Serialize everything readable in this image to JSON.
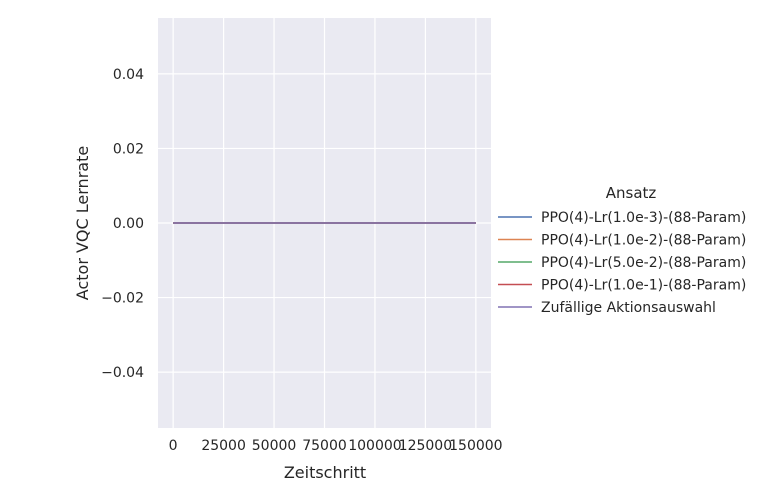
{
  "chart_data": {
    "type": "line",
    "xlabel": "Zeitschritt",
    "ylabel": "Actor VQC Lernrate",
    "xlim": [
      -7500,
      157500
    ],
    "ylim": [
      -0.055,
      0.055
    ],
    "xticks": [
      0,
      25000,
      50000,
      75000,
      100000,
      125000,
      150000
    ],
    "yticks": [
      -0.04,
      -0.02,
      0.0,
      0.02,
      0.04
    ],
    "xtick_labels": [
      "0",
      "25000",
      "50000",
      "75000",
      "100000",
      "125000",
      "150000"
    ],
    "ytick_labels": [
      "−0.04",
      "−0.02",
      "0.00",
      "0.02",
      "0.04"
    ],
    "grid": true,
    "legend_placement": "right",
    "legend_title": "Ansatz",
    "series": [
      {
        "name": "PPO(4)-Lr(1.0e-3)-(88-Param)",
        "color": "#4c72b0",
        "x": [
          0,
          150000
        ],
        "y": [
          0.0,
          0.0
        ]
      },
      {
        "name": "PPO(4)-Lr(1.0e-2)-(88-Param)",
        "color": "#dd8452",
        "x": [
          0,
          150000
        ],
        "y": [
          0.0,
          0.0
        ]
      },
      {
        "name": "PPO(4)-Lr(5.0e-2)-(88-Param)",
        "color": "#55a868",
        "x": [
          0,
          150000
        ],
        "y": [
          0.0,
          0.0
        ]
      },
      {
        "name": "PPO(4)-Lr(1.0e-1)-(88-Param)",
        "color": "#c44e52",
        "x": [
          0,
          150000
        ],
        "y": [
          0.0,
          0.0
        ]
      },
      {
        "name": "Zufällige Aktionsauswahl",
        "color": "#8172b3",
        "x": [
          0,
          150000
        ],
        "y": [
          0.0,
          0.0
        ]
      }
    ]
  }
}
